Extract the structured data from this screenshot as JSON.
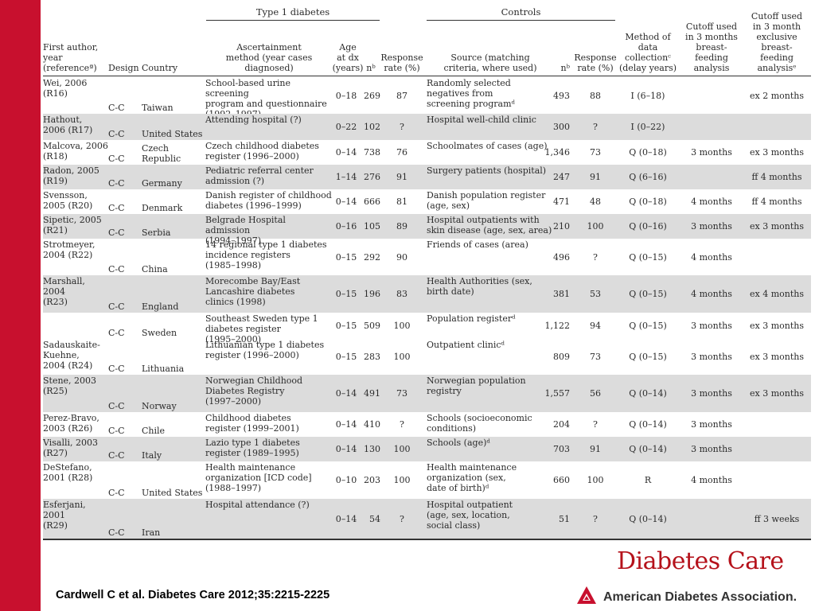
{
  "groups": {
    "type1": "Type 1 diabetes",
    "controls": "Controls"
  },
  "headers": {
    "author": "First author,\nyear\n(referenceª)",
    "design": "Design",
    "country": "Country",
    "ascertainment": "Ascertainment\nmethod (year cases\ndiagnosed)",
    "age": "Age\nat dx\n(years)",
    "n_cases": "nᵇ",
    "response_cases": "Response\nrate (%)",
    "source": "Source (matching\ncriteria, where used)",
    "n_controls": "nᵇ",
    "response_controls": "Response\nrate (%)",
    "method": "Method of data\ncollectionᶜ\n(delay years)",
    "cutoff_bf": "Cutoff used\nin 3 months\nbreast-feeding\nanalysis",
    "cutoff_excl": "Cutoff used\nin 3 month\nexclusive breast-\nfeeding analysisᵉ"
  },
  "rows": [
    {
      "author": "Wei, 2006\n    (R16)",
      "design": "C-C",
      "country": "Taiwan",
      "ascertainment": "School-based urine screening\n    program and questionnaire\n    (1992–1997)",
      "age": "0–18",
      "n_cases": "269",
      "response_cases": "87",
      "source": "Randomly selected\n    negatives from\n    screening programᵈ",
      "n_controls": "493",
      "response_controls": "88",
      "method": "I (6–18)",
      "cutoff_bf": "",
      "cutoff_excl": "ex 2 months"
    },
    {
      "author": "Hathout,\n    2006 (R17)",
      "design": "C-C",
      "country": "United States",
      "ascertainment": "Attending hospital (?)",
      "age": "0–22",
      "n_cases": "102",
      "response_cases": "?",
      "source": "Hospital well-child clinic",
      "n_controls": "300",
      "response_controls": "?",
      "method": "I (0–22)",
      "cutoff_bf": "",
      "cutoff_excl": ""
    },
    {
      "author": "Malcova, 2006\n    (R18)",
      "design": "C-C",
      "country": "Czech Republic",
      "ascertainment": "Czech childhood diabetes\n    register (1996–2000)",
      "age": "0–14",
      "n_cases": "738",
      "response_cases": "76",
      "source": "Schoolmates of cases (age)",
      "n_controls": "1,346",
      "response_controls": "73",
      "method": "Q (0–18)",
      "cutoff_bf": "3 months",
      "cutoff_excl": "ex 3 months"
    },
    {
      "author": "Radon, 2005\n    (R19)",
      "design": "C-C",
      "country": "Germany",
      "ascertainment": "Pediatric referral center\n    admission (?)",
      "age": "1–14",
      "n_cases": "276",
      "response_cases": "91",
      "source": "Surgery patients (hospital)",
      "n_controls": "247",
      "response_controls": "91",
      "method": "Q (6–16)",
      "cutoff_bf": "",
      "cutoff_excl": "ff 4 months"
    },
    {
      "author": "Svensson,\n    2005 (R20)",
      "design": "C-C",
      "country": "Denmark",
      "ascertainment": "Danish register of childhood\n    diabetes (1996–1999)",
      "age": "0–14",
      "n_cases": "666",
      "response_cases": "81",
      "source": "Danish population register\n    (age, sex)",
      "n_controls": "471",
      "response_controls": "48",
      "method": "Q (0–18)",
      "cutoff_bf": "4 months",
      "cutoff_excl": "ff 4 months"
    },
    {
      "author": "Sipetic, 2005\n    (R21)",
      "design": "C-C",
      "country": "Serbia",
      "ascertainment": "Belgrade Hospital admission\n    (1994–1997)",
      "age": "0–16",
      "n_cases": "105",
      "response_cases": "89",
      "source": "Hospital outpatients with\nskin disease (age, sex, area)",
      "n_controls": "210",
      "response_controls": "100",
      "method": "Q (0–16)",
      "cutoff_bf": "3 months",
      "cutoff_excl": "ex 3 months"
    },
    {
      "author": "Strotmeyer,\n    2004 (R22)",
      "design": "C-C",
      "country": "China",
      "ascertainment": "14 regional type 1 diabetes\n    incidence registers\n    (1985–1998)",
      "age": "0–15",
      "n_cases": "292",
      "response_cases": "90",
      "source": "Friends of cases (area)",
      "n_controls": "496",
      "response_controls": "?",
      "method": "Q (0–15)",
      "cutoff_bf": "4 months",
      "cutoff_excl": ""
    },
    {
      "author": "Marshall, 2004\n    (R23)",
      "design": "C-C",
      "country": "England",
      "ascertainment": "Morecombe Bay/East\n    Lancashire diabetes\n    clinics (1998)",
      "age": "0–15",
      "n_cases": "196",
      "response_cases": "83",
      "source": "Health Authorities (sex,\n    birth date)",
      "n_controls": "381",
      "response_controls": "53",
      "method": "Q (0–15)",
      "cutoff_bf": "4 months",
      "cutoff_excl": "ex 4 months"
    },
    {
      "author": "",
      "design": "C-C",
      "country": "Sweden",
      "ascertainment": "Southeast Sweden type 1\n    diabetes register\n    (1995–2000)",
      "age": "0–15",
      "n_cases": "509",
      "response_cases": "100",
      "source": "Population registerᵈ",
      "n_controls": "1,122",
      "response_controls": "94",
      "method": "Q (0–15)",
      "cutoff_bf": "3 months",
      "cutoff_excl": "ex 3 months"
    },
    {
      "author": "Sadauskaite-\n    Kuehne,\n    2004 (R24)",
      "design": "C-C",
      "country": "Lithuania",
      "ascertainment": "Lithuanian type 1 diabetes\n    register (1996–2000)",
      "age": "0–15",
      "n_cases": "283",
      "response_cases": "100",
      "source": "Outpatient clinicᵈ",
      "n_controls": "809",
      "response_controls": "73",
      "method": "Q (0–15)",
      "cutoff_bf": "3 months",
      "cutoff_excl": "ex 3 months"
    },
    {
      "author": "Stene, 2003\n    (R25)",
      "design": "C-C",
      "country": "Norway",
      "ascertainment": "Norwegian Childhood\n    Diabetes Registry\n    (1997–2000)",
      "age": "0–14",
      "n_cases": "491",
      "response_cases": "73",
      "source": "    Norwegian population\n    registry",
      "n_controls": "1,557",
      "response_controls": "56",
      "method": "Q (0–14)",
      "cutoff_bf": "3 months",
      "cutoff_excl": "ex 3 months"
    },
    {
      "author": "Perez-Bravo,\n    2003 (R26)",
      "design": "C-C",
      "country": "Chile",
      "ascertainment": "Childhood diabetes\n    register (1999–2001)",
      "age": "0–14",
      "n_cases": "410",
      "response_cases": "?",
      "source": "Schools (socioeconomic\n    conditions)",
      "n_controls": "204",
      "response_controls": "?",
      "method": "Q (0–14)",
      "cutoff_bf": "3 months",
      "cutoff_excl": ""
    },
    {
      "author": "Visalli, 2003\n    (R27)",
      "design": "C-C",
      "country": "Italy",
      "ascertainment": "Lazio type 1 diabetes\n    register (1989–1995)",
      "age": "0–14",
      "n_cases": "130",
      "response_cases": "100",
      "source": "Schools (age)ᵈ",
      "n_controls": "703",
      "response_controls": "91",
      "method": "Q (0–14)",
      "cutoff_bf": "3 months",
      "cutoff_excl": ""
    },
    {
      "author": "DeStefano,\n    2001 (R28)",
      "design": "C-C",
      "country": "United States",
      "ascertainment": "Health maintenance\n    organization [ICD code]\n    (1988–1997)",
      "age": "0–10",
      "n_cases": "203",
      "response_cases": "100",
      "source": "Health maintenance\n    organization (sex,\n    date of birth)ᵈ",
      "n_controls": "660",
      "response_controls": "100",
      "method": "R",
      "cutoff_bf": "4 months",
      "cutoff_excl": ""
    },
    {
      "author": "Esferjani, 2001\n    (R29)",
      "design": "C-C",
      "country": "Iran",
      "ascertainment": "Hospital attendance (?)",
      "age": "0–14",
      "n_cases": "54",
      "response_cases": "?",
      "source": "Hospital outpatient\n    (age, sex, location,\n    social class)",
      "n_controls": "51",
      "response_controls": "?",
      "method": "Q (0–14)",
      "cutoff_bf": "",
      "cutoff_excl": "ff 3 weeks"
    }
  ],
  "footer": {
    "citation": "Cardwell  C et al. Diabetes Care 2012;35:2215-2225",
    "journal": "Diabetes Care",
    "association": "American Diabetes Association."
  },
  "colors": {
    "sidebar": "#c8102e",
    "brand": "#b5121b",
    "shade": "#dcdcdc"
  }
}
